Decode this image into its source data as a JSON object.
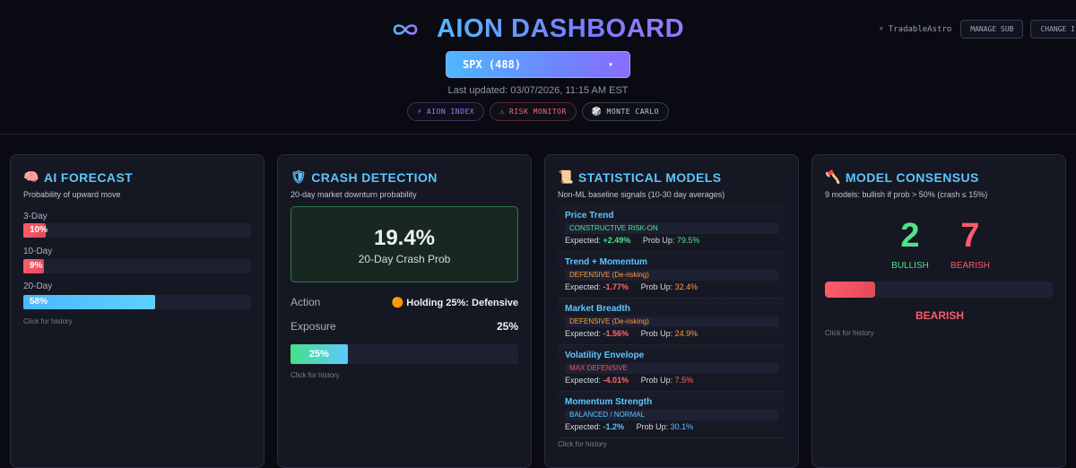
{
  "header": {
    "title": "AION DASHBOARD",
    "user": "⚡ TradableAstro",
    "manage_sub": "MANAGE SUB",
    "change": "CHANGE I",
    "symbol": "SPX (488)",
    "caret": "▾",
    "last_updated": "Last updated: 03/07/2026, 11:15 AM EST",
    "nav": [
      {
        "icon": "⚡",
        "label": "AION INDEX"
      },
      {
        "icon": "⚠",
        "label": "RISK MONITOR"
      },
      {
        "icon": "🎲",
        "label": "MONTE CARLO"
      }
    ]
  },
  "forecast": {
    "icon": "🧠",
    "title": "AI FORECAST",
    "subtitle": "Probability of upward move",
    "rows": [
      {
        "label": "3-Day",
        "value": 10,
        "text": "10%"
      },
      {
        "label": "10-Day",
        "value": 9,
        "text": "9%"
      },
      {
        "label": "20-Day",
        "value": 58,
        "text": "58%"
      }
    ],
    "history": "Click for history"
  },
  "crash": {
    "icon": "🛡",
    "title": "CRASH DETECTION",
    "subtitle": "20-day market downturn probability",
    "value": "19.4%",
    "label": "20-Day Crash Prob",
    "action_label": "Action",
    "action_value": "🟠 Holding 25%: Defensive",
    "exposure_label": "Exposure",
    "exposure_value": "25%",
    "exposure_pct": 25,
    "bar_text": "25%",
    "history": "Click for history"
  },
  "stats": {
    "icon": "📜",
    "title": "STATISTICAL MODELS",
    "subtitle": "Non-ML baseline signals (10-30 day averages)",
    "expected_label": "Expected:",
    "probup_label": "Prob Up:",
    "models": [
      {
        "name": "Price Trend",
        "tag": "CONSTRUCTIVE RISK-ON",
        "expected": "+2.49%",
        "prob_up": "79.5%"
      },
      {
        "name": "Trend + Momentum",
        "tag": "DEFENSIVE (De-risking)",
        "expected": "-1.77%",
        "prob_up": "32.4%"
      },
      {
        "name": "Market Breadth",
        "tag": "DEFENSIVE (De-risking)",
        "expected": "-1.56%",
        "prob_up": "24.9%"
      },
      {
        "name": "Volatility Envelope",
        "tag": "MAX DEFENSIVE",
        "expected": "-4.01%",
        "prob_up": "7.5%"
      },
      {
        "name": "Momentum Strength",
        "tag": "BALANCED / NORMAL",
        "expected": "-1.2%",
        "prob_up": "30.1%"
      }
    ],
    "history": "Click for history"
  },
  "consensus": {
    "icon": "🪓",
    "title": "MODEL CONSENSUS",
    "subtitle": "9 models: bullish if prob > 50% (crash ≤ 15%)",
    "bullish": "2",
    "bullish_label": "BULLISH",
    "bearish": "7",
    "bearish_label": "BEARISH",
    "bullish_share": 0.22,
    "verdict": "BEARISH",
    "history": "Click for history"
  },
  "colors": {
    "accent": "#5cc6ff",
    "bullish": "#4ee28d",
    "bearish": "#ff5a6a",
    "defensive": "#ff9a3c"
  }
}
